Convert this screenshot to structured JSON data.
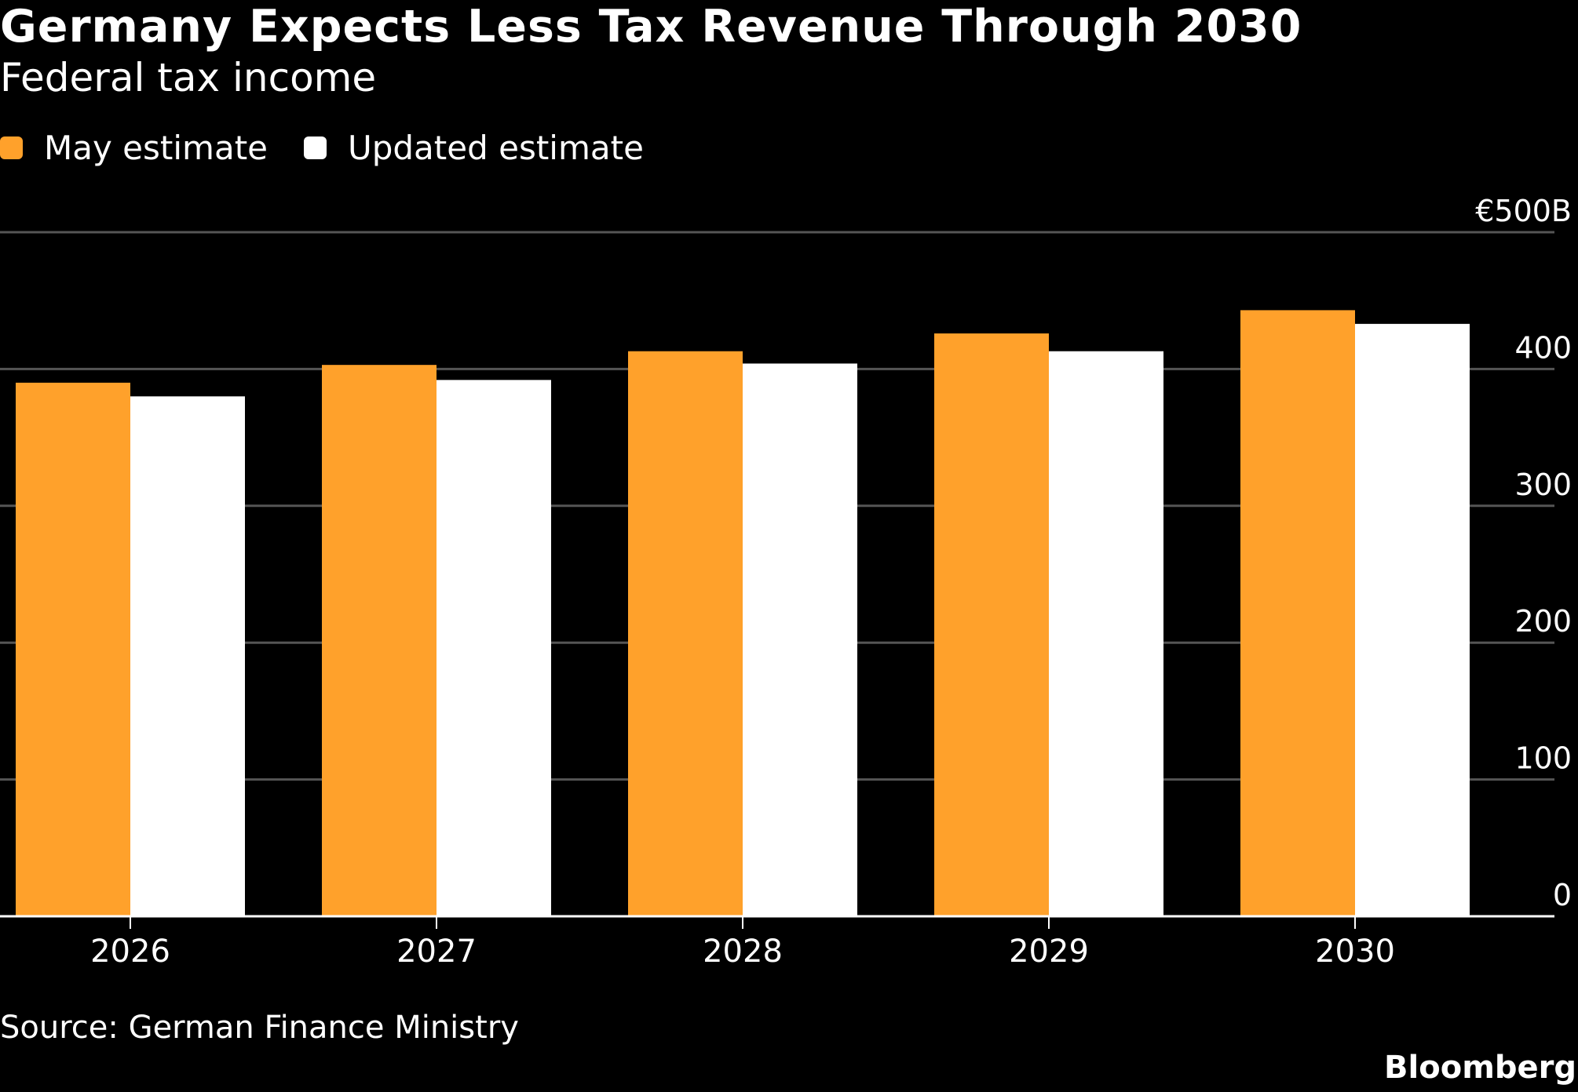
{
  "title": "Germany Expects Less Tax Revenue Through 2030",
  "subtitle": "Federal tax income",
  "source": "Source: German Finance Ministry",
  "brand": "Bloomberg",
  "legend": [
    {
      "label": "May estimate",
      "color": "#FFA12B"
    },
    {
      "label": "Updated estimate",
      "color": "#FFFFFF"
    }
  ],
  "chart_data": {
    "type": "bar",
    "categories": [
      "2026",
      "2027",
      "2028",
      "2029",
      "2030"
    ],
    "series": [
      {
        "name": "May estimate",
        "color": "#FFA12B",
        "values": [
          390,
          403,
          413,
          426,
          443
        ]
      },
      {
        "name": "Updated estimate",
        "color": "#FFFFFF",
        "values": [
          380,
          392,
          404,
          413,
          433
        ]
      }
    ],
    "ylim": [
      0,
      500
    ],
    "yticks": [
      0,
      100,
      200,
      300,
      400,
      500
    ],
    "ytick_labels": [
      "0",
      "100",
      "200",
      "300",
      "400",
      "€500B"
    ],
    "y_axis_position": "right",
    "grid": true,
    "legend_position": "top-left"
  }
}
